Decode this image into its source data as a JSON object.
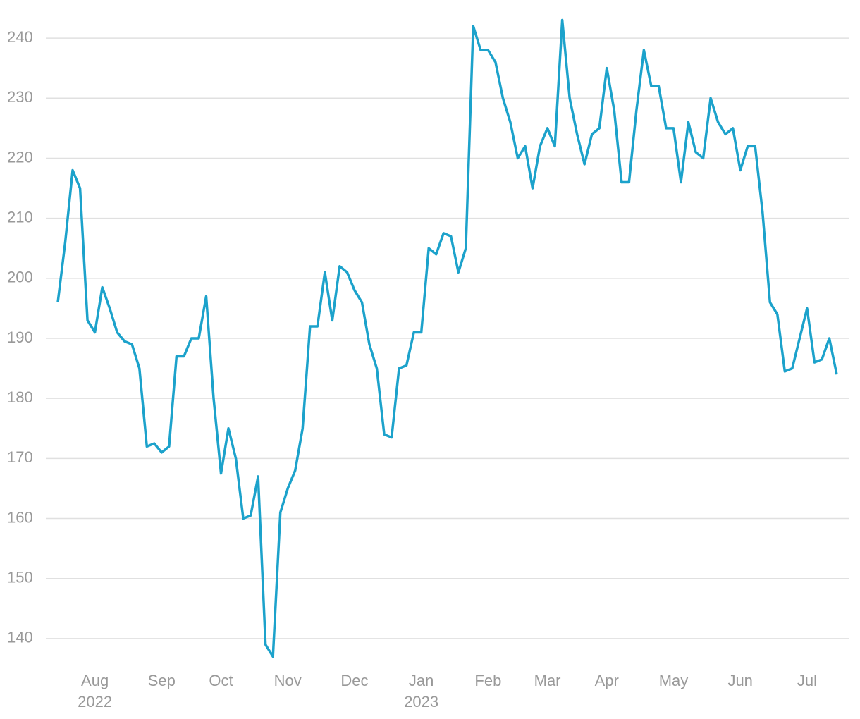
{
  "chart_data": {
    "type": "line",
    "categories": [
      null,
      null,
      null,
      null,
      null,
      "Aug",
      null,
      null,
      null,
      null,
      null,
      null,
      null,
      null,
      "Sep",
      null,
      null,
      null,
      null,
      null,
      null,
      null,
      "Oct",
      null,
      null,
      null,
      null,
      null,
      null,
      null,
      null,
      "Nov",
      null,
      null,
      null,
      null,
      null,
      null,
      null,
      null,
      "Dec",
      null,
      null,
      null,
      null,
      null,
      null,
      null,
      null,
      "Jan",
      null,
      null,
      null,
      null,
      null,
      null,
      null,
      null,
      "Feb",
      null,
      null,
      null,
      null,
      null,
      null,
      null,
      "Mar",
      null,
      null,
      null,
      null,
      null,
      null,
      null,
      "Apr",
      null,
      null,
      null,
      null,
      null,
      null,
      null,
      null,
      "May",
      null,
      null,
      null,
      null,
      null,
      null,
      null,
      null,
      "Jun",
      null,
      null,
      null,
      null,
      null,
      null,
      null,
      null,
      "Jul",
      null,
      null,
      null,
      null
    ],
    "category_years": [
      null,
      null,
      null,
      null,
      null,
      "2022",
      null,
      null,
      null,
      null,
      null,
      null,
      null,
      null,
      null,
      null,
      null,
      null,
      null,
      null,
      null,
      null,
      null,
      null,
      null,
      null,
      null,
      null,
      null,
      null,
      null,
      null,
      null,
      null,
      null,
      null,
      null,
      null,
      null,
      null,
      null,
      null,
      null,
      null,
      null,
      null,
      null,
      null,
      null,
      "2023",
      null,
      null,
      null,
      null,
      null,
      null,
      null,
      null,
      null,
      null,
      null,
      null,
      null,
      null,
      null,
      null,
      null,
      null,
      null,
      null,
      null,
      null,
      null,
      null,
      null,
      null,
      null,
      null,
      null,
      null,
      null,
      null,
      null,
      null,
      null,
      null,
      null,
      null,
      null,
      null,
      null,
      null,
      null,
      null,
      null,
      null,
      null,
      null,
      null,
      null,
      null,
      null,
      null,
      null,
      null,
      null
    ],
    "values": [
      196,
      206,
      218,
      215,
      193,
      191,
      198.5,
      195,
      191,
      189.5,
      189,
      185,
      172,
      172.5,
      171,
      172,
      187,
      187,
      190,
      190,
      197,
      180,
      167.5,
      175,
      170,
      160,
      160.5,
      167,
      139,
      137,
      161,
      165,
      168,
      175,
      192,
      192,
      201,
      193,
      202,
      201,
      198,
      196,
      189,
      185,
      174,
      173.5,
      185,
      185.5,
      191,
      191,
      205,
      204,
      207.5,
      207,
      201,
      205,
      242,
      238,
      238,
      236,
      230,
      226,
      220,
      222,
      215,
      222,
      225,
      222,
      243,
      230,
      224,
      219,
      224,
      225,
      235,
      228,
      216,
      216,
      228,
      238,
      232,
      232,
      225,
      225,
      216,
      226,
      221,
      220,
      230,
      226,
      224,
      225,
      218,
      222,
      222,
      211,
      196,
      194,
      184.5,
      185,
      190,
      195,
      186,
      186.5,
      190,
      184
    ],
    "color": "#1ca2cb",
    "ylim": [
      136,
      244
    ],
    "yticks": [
      140,
      150,
      160,
      170,
      180,
      190,
      200,
      210,
      220,
      230,
      240
    ],
    "grid": true
  }
}
